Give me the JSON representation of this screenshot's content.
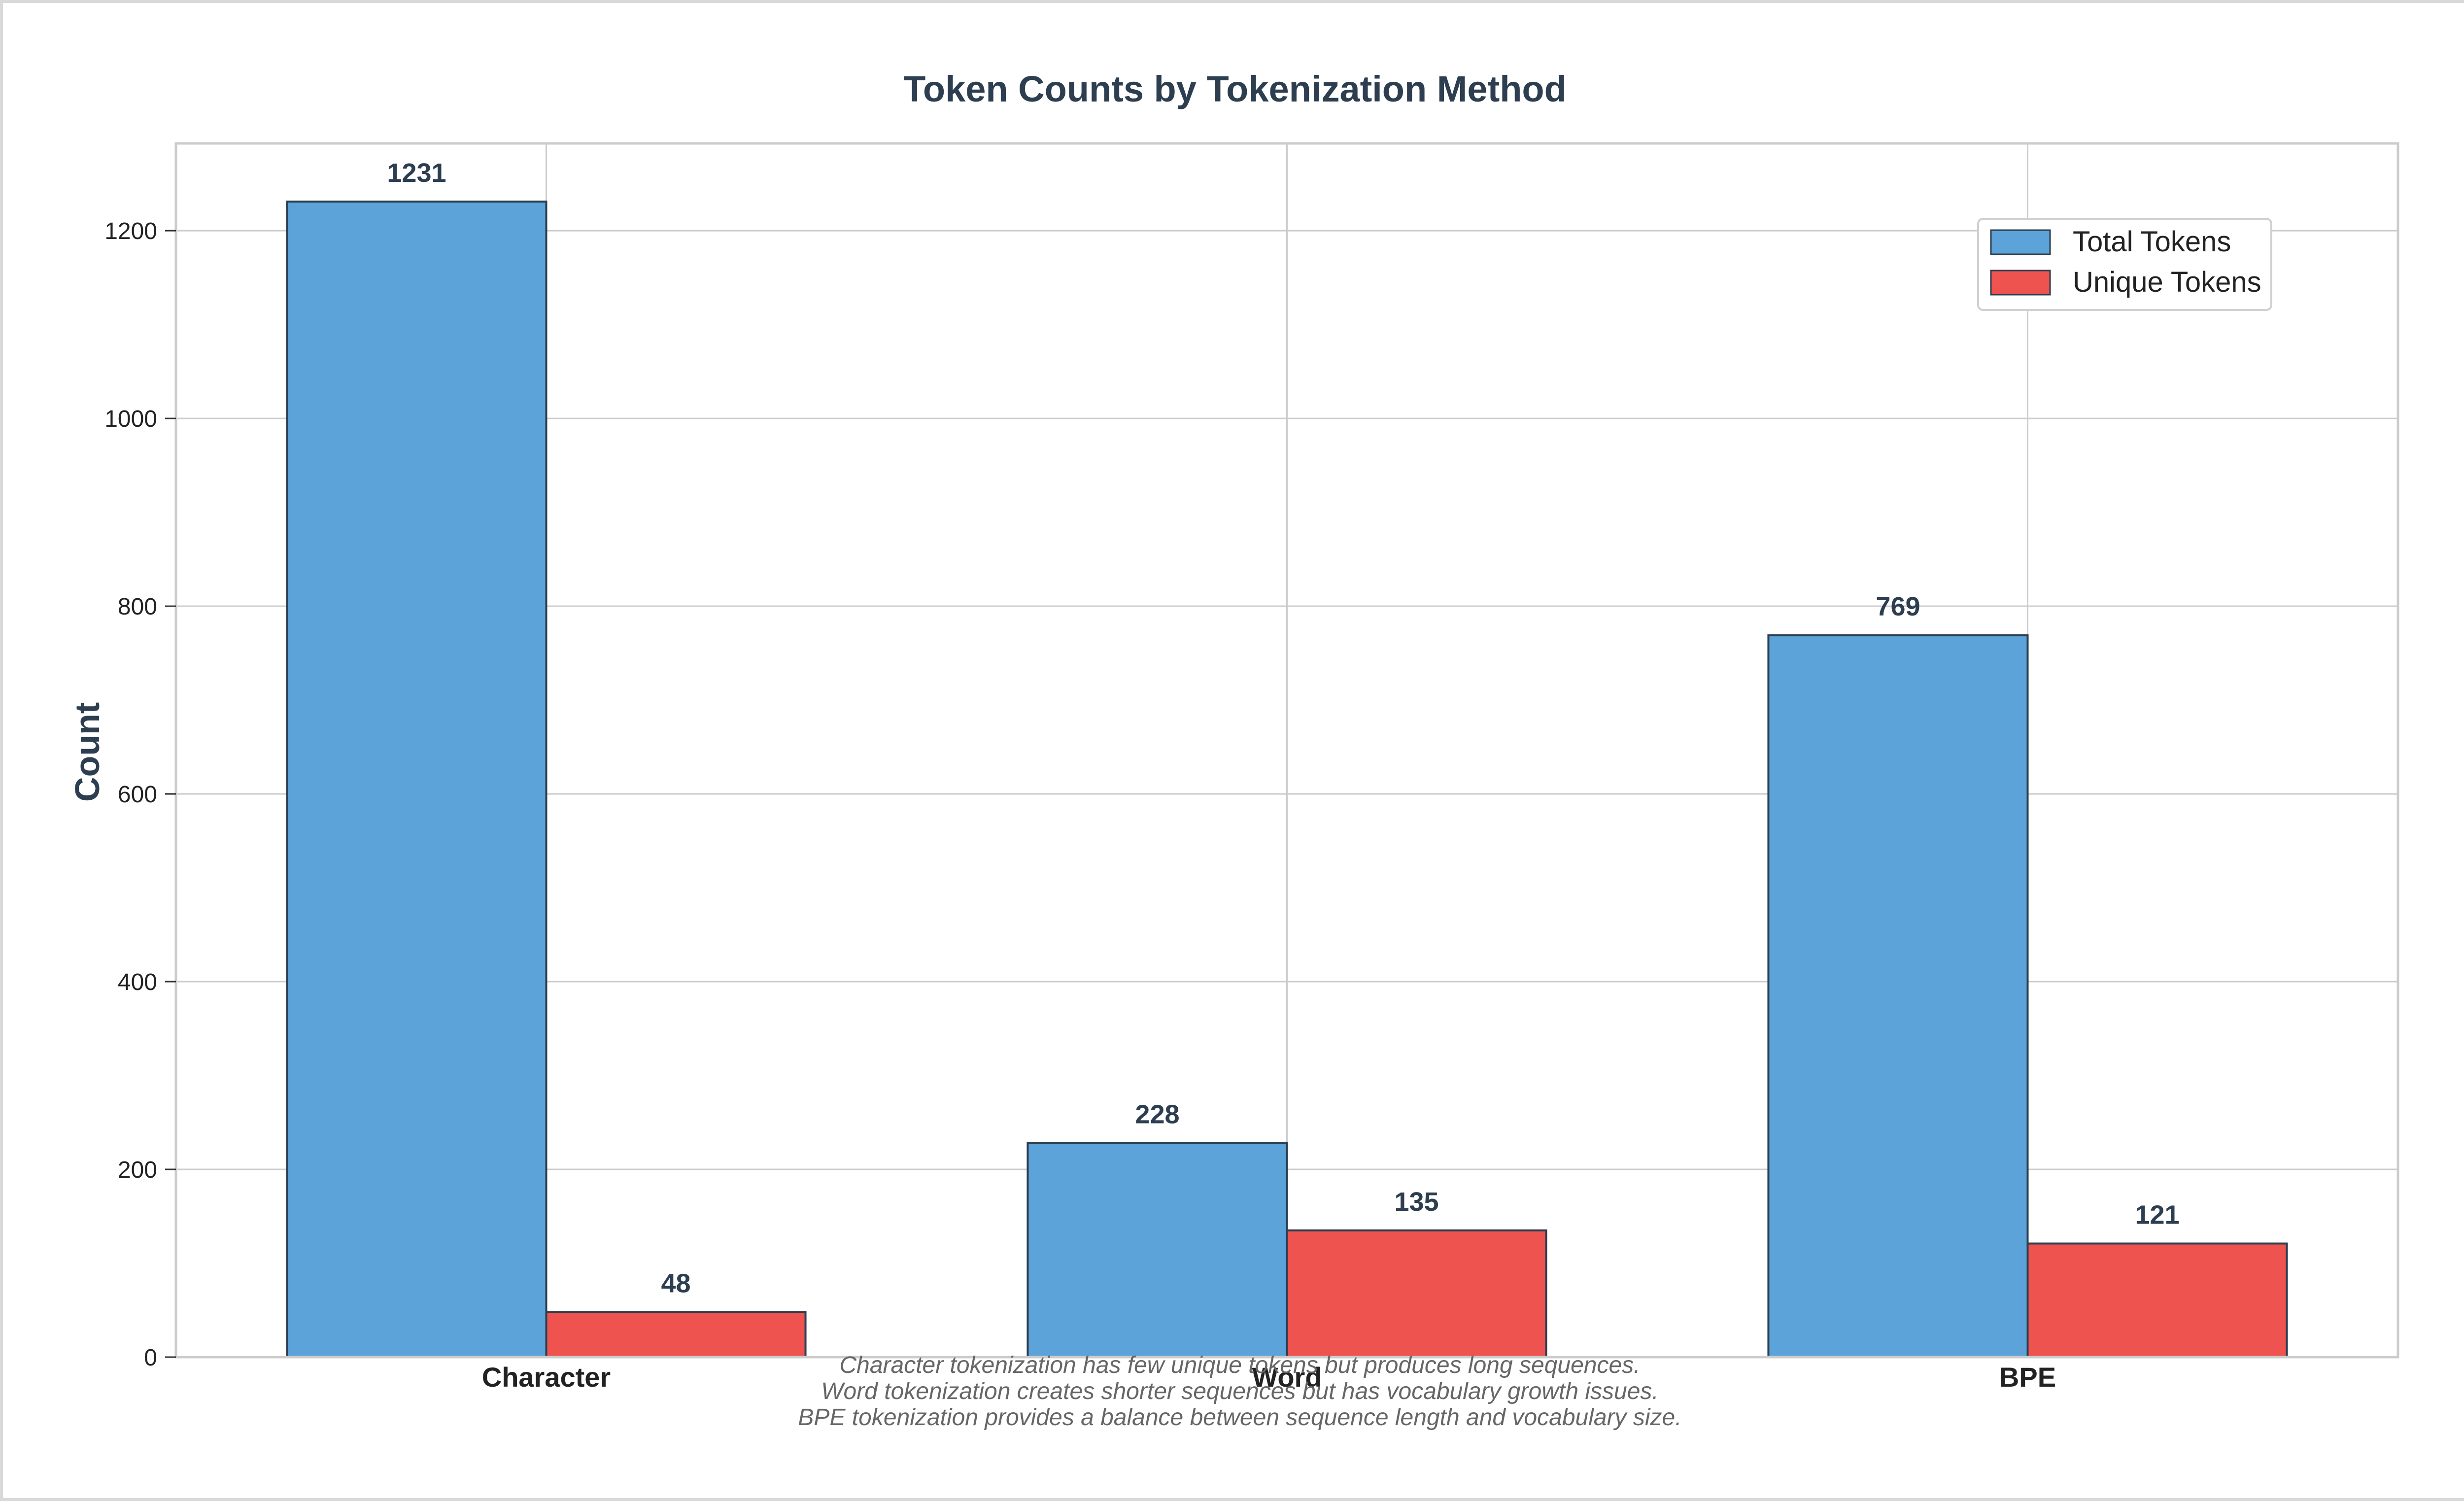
{
  "chart_data": {
    "type": "bar",
    "title": "Token Counts by Tokenization Method",
    "xlabel": "",
    "ylabel": "Count",
    "categories": [
      "Character",
      "Word",
      "BPE"
    ],
    "series": [
      {
        "name": "Total Tokens",
        "values": [
          1231,
          228,
          769
        ],
        "color": "#5ba3d9"
      },
      {
        "name": "Unique Tokens",
        "values": [
          48,
          135,
          121
        ],
        "color": "#ef5350"
      }
    ],
    "ylim": [
      0,
      1293
    ],
    "yticks": [
      0,
      200,
      400,
      600,
      800,
      1000,
      1200
    ],
    "ytick_labels": [
      "0",
      "200",
      "400",
      "600",
      "800",
      "1000",
      "1200"
    ],
    "grid": true,
    "legend_position": "top-right",
    "data_labels": true
  },
  "annotation": {
    "lines": [
      "Character tokenization has few unique tokens but produces long sequences.",
      "Word tokenization creates shorter sequences but has vocabulary growth issues.",
      "BPE tokenization provides a balance between sequence length and vocabulary size."
    ]
  },
  "colors": {
    "title_text": "#2c3e50",
    "bar_edge": "#2c3e50",
    "grid": "#cccccc",
    "annotation_text": "#666666"
  }
}
